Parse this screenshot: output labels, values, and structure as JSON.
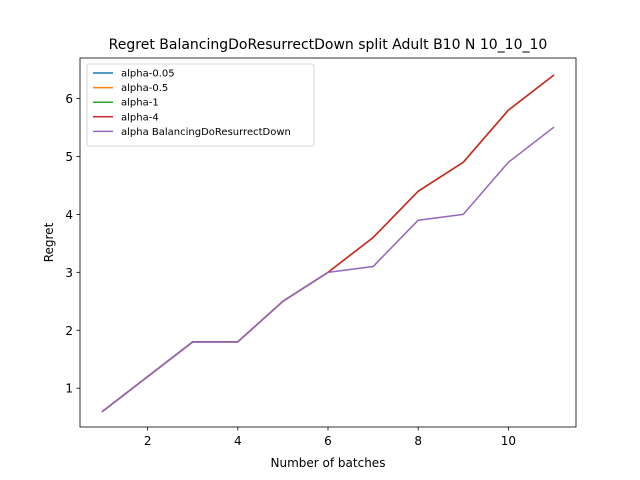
{
  "chart_data": {
    "type": "line",
    "title": "Regret BalancingDoResurrectDown split Adult B10 N 10_10_10",
    "xlabel": "Number of batches",
    "ylabel": "Regret",
    "xlim": [
      0.5,
      11.5
    ],
    "ylim": [
      0.33,
      6.7
    ],
    "x_ticks": [
      2,
      4,
      6,
      8,
      10
    ],
    "y_ticks": [
      1,
      2,
      3,
      4,
      5,
      6
    ],
    "grid": false,
    "legend_position": "upper left",
    "x": [
      1,
      2,
      3,
      4,
      5,
      6,
      7,
      8,
      9,
      10,
      11
    ],
    "series": [
      {
        "name": "alpha-0.05",
        "color": "#1f77b4",
        "values": [
          0.6,
          1.2,
          1.8,
          1.8,
          2.5,
          3.0,
          3.6,
          4.4,
          4.9,
          5.8,
          6.4
        ]
      },
      {
        "name": "alpha-0.5",
        "color": "#ff7f0e",
        "values": [
          0.6,
          1.2,
          1.8,
          1.8,
          2.5,
          3.0,
          3.6,
          4.4,
          4.9,
          5.8,
          6.4
        ]
      },
      {
        "name": "alpha-1",
        "color": "#2ca02c",
        "values": [
          0.6,
          1.2,
          1.8,
          1.8,
          2.5,
          3.0,
          3.6,
          4.4,
          4.9,
          5.8,
          6.4
        ]
      },
      {
        "name": "alpha-4",
        "color": "#d62728",
        "values": [
          0.6,
          1.2,
          1.8,
          1.8,
          2.5,
          3.0,
          3.6,
          4.4,
          4.9,
          5.8,
          6.4
        ]
      },
      {
        "name": "alpha BalancingDoResurrectDown",
        "color": "#9467bd",
        "values": [
          0.6,
          1.2,
          1.8,
          1.8,
          2.5,
          3.0,
          3.1,
          3.9,
          4.0,
          4.9,
          5.5
        ]
      }
    ]
  }
}
